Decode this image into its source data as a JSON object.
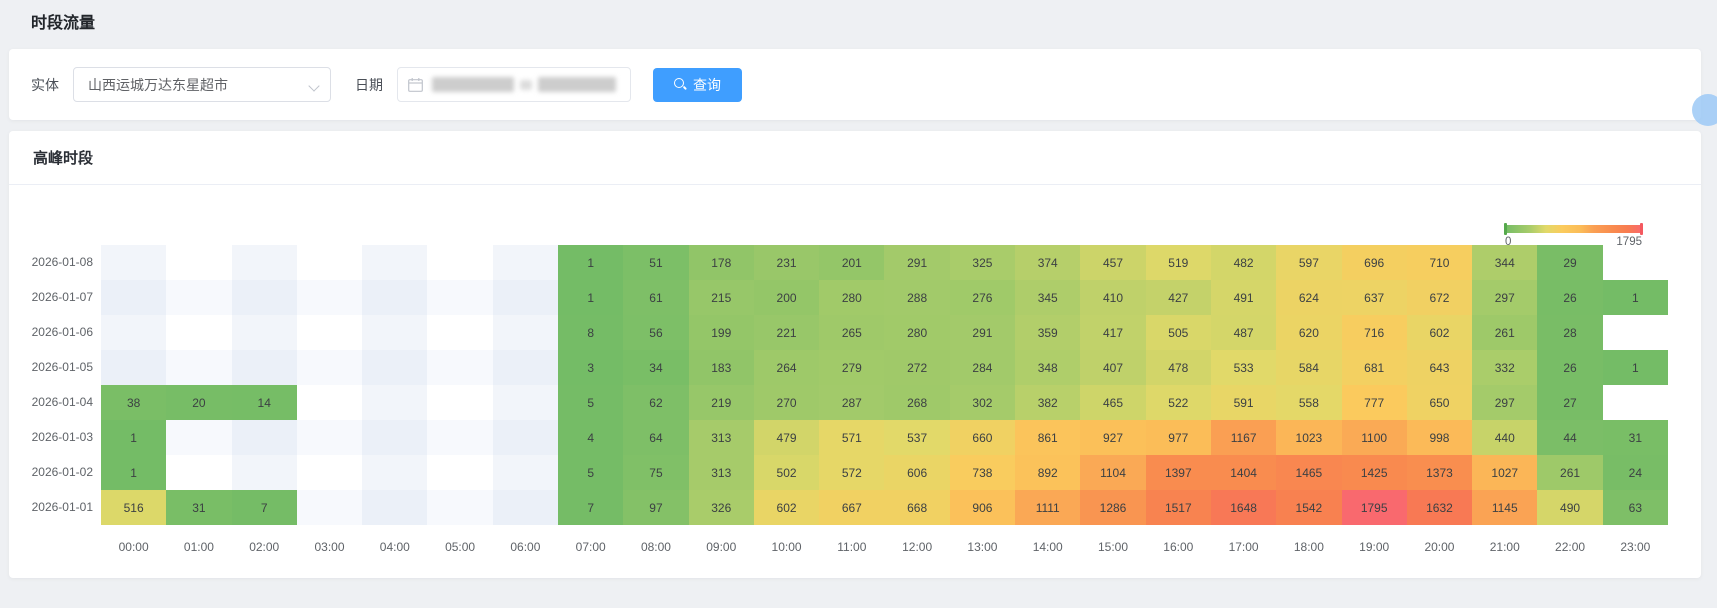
{
  "page": {
    "title": "时段流量"
  },
  "filters": {
    "entity_label": "实体",
    "entity_value": "山西运城万达东星超市",
    "date_label": "日期",
    "date_value": "",
    "search_button": "查询"
  },
  "card": {
    "title": "高峰时段"
  },
  "colors": {
    "accent": "#3f9eff",
    "cell_text": "#3c4043",
    "empty_cell_white": "#ffffff",
    "empty_cell_col_shade": "#f2f5fa",
    "empty_cell_row_shade": "#f7f9fd",
    "empty_cell_both_shade": "#ebf0f8"
  },
  "chart_data": {
    "type": "heatmap",
    "title": "高峰时段",
    "xlabel": "",
    "ylabel": "",
    "x_labels": [
      "00:00",
      "01:00",
      "02:00",
      "03:00",
      "04:00",
      "05:00",
      "06:00",
      "07:00",
      "08:00",
      "09:00",
      "10:00",
      "11:00",
      "12:00",
      "13:00",
      "14:00",
      "15:00",
      "16:00",
      "17:00",
      "18:00",
      "19:00",
      "20:00",
      "21:00",
      "22:00",
      "23:00"
    ],
    "y_labels_top_to_bottom": [
      "2026-01-08",
      "2026-01-07",
      "2026-01-06",
      "2026-01-05",
      "2026-01-04",
      "2026-01-03",
      "2026-01-02",
      "2026-01-01"
    ],
    "values_by_row": [
      [
        null,
        null,
        null,
        null,
        null,
        null,
        null,
        1,
        51,
        178,
        231,
        201,
        291,
        325,
        374,
        457,
        519,
        482,
        597,
        696,
        710,
        344,
        29,
        null
      ],
      [
        null,
        null,
        null,
        null,
        null,
        null,
        null,
        1,
        61,
        215,
        200,
        280,
        288,
        276,
        345,
        410,
        427,
        491,
        624,
        637,
        672,
        297,
        26,
        1
      ],
      [
        null,
        null,
        null,
        null,
        null,
        null,
        null,
        8,
        56,
        199,
        221,
        265,
        280,
        291,
        359,
        417,
        505,
        487,
        620,
        716,
        602,
        261,
        28,
        null
      ],
      [
        null,
        null,
        null,
        null,
        null,
        null,
        null,
        3,
        34,
        183,
        264,
        279,
        272,
        284,
        348,
        407,
        478,
        533,
        584,
        681,
        643,
        332,
        26,
        1
      ],
      [
        38,
        20,
        14,
        null,
        null,
        null,
        null,
        5,
        62,
        219,
        270,
        287,
        268,
        302,
        382,
        465,
        522,
        591,
        558,
        777,
        650,
        297,
        27,
        null
      ],
      [
        1,
        null,
        null,
        null,
        null,
        null,
        null,
        4,
        64,
        313,
        479,
        571,
        537,
        660,
        861,
        927,
        977,
        1167,
        1023,
        1100,
        998,
        440,
        44,
        31
      ],
      [
        1,
        null,
        null,
        null,
        null,
        null,
        null,
        5,
        75,
        313,
        502,
        572,
        606,
        738,
        892,
        1104,
        1397,
        1404,
        1465,
        1425,
        1373,
        1027,
        261,
        24
      ],
      [
        516,
        31,
        7,
        null,
        null,
        null,
        null,
        7,
        97,
        326,
        602,
        667,
        668,
        906,
        1111,
        1286,
        1517,
        1648,
        1542,
        1795,
        1632,
        1145,
        490,
        63
      ]
    ],
    "legend": {
      "min": "0",
      "max": "1795",
      "position": "top-right"
    },
    "color_stops": [
      {
        "pos": 0.0,
        "color": "#74bc66"
      },
      {
        "pos": 0.18,
        "color": "#a8cc6a"
      },
      {
        "pos": 0.3,
        "color": "#e2d969"
      },
      {
        "pos": 0.42,
        "color": "#fbcb5d"
      },
      {
        "pos": 0.55,
        "color": "#fbbc58"
      },
      {
        "pos": 0.65,
        "color": "#fa9f53"
      },
      {
        "pos": 0.78,
        "color": "#f98c4f"
      },
      {
        "pos": 0.9,
        "color": "#f87b51"
      },
      {
        "pos": 1.0,
        "color": "#f9696e"
      }
    ],
    "value_range": [
      0,
      1795
    ],
    "grid": "checkerboard-splitArea"
  }
}
